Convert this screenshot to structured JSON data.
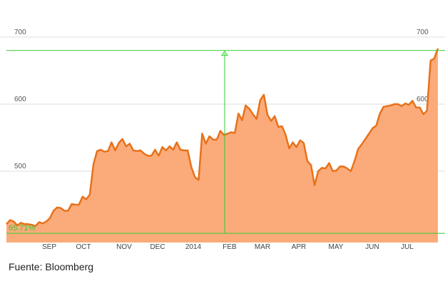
{
  "chart_data": {
    "type": "area",
    "title": "",
    "xlabel": "",
    "ylabel": "",
    "ylim": [
      415,
      730
    ],
    "grid": true,
    "y_ticks": [
      500,
      600,
      700
    ],
    "x_tick_labels": [
      "SEP",
      "OCT",
      "NOV",
      "DEC",
      "2014",
      "FEB",
      "MAR",
      "APR",
      "MAY",
      "JUN",
      "JUL"
    ],
    "annotation": "65.71%",
    "reference_levels": {
      "low": 418,
      "high": 680
    },
    "colors": {
      "line": "#e8711a",
      "fill": "#fbab7a",
      "annotation": "#33cc33",
      "grid": "#dddddd"
    },
    "series": [
      {
        "values": [
          421,
          427,
          425,
          419,
          423,
          421,
          421,
          420,
          418,
          424,
          422,
          425,
          430,
          441,
          446,
          445,
          441,
          441,
          451,
          450,
          450,
          462,
          458,
          465,
          510,
          530,
          532,
          529,
          530,
          543,
          531,
          542,
          548,
          537,
          541,
          531,
          530,
          531,
          526,
          523,
          523,
          532,
          523,
          536,
          531,
          537,
          532,
          543,
          532,
          531,
          531,
          506,
          491,
          487,
          556,
          541,
          552,
          547,
          547,
          560,
          554,
          556,
          558,
          557,
          586,
          576,
          598,
          593,
          585,
          578,
          606,
          614,
          584,
          575,
          582,
          566,
          567,
          554,
          534,
          543,
          536,
          546,
          542,
          515,
          509,
          479,
          500,
          505,
          504,
          512,
          500,
          501,
          507,
          507,
          504,
          500,
          515,
          533,
          540,
          548,
          556,
          564,
          568,
          586,
          596,
          597,
          598,
          600,
          600,
          597,
          601,
          599,
          605,
          595,
          595,
          585,
          590,
          665,
          668,
          683
        ]
      }
    ]
  },
  "source_text": "Fuente: Bloomberg"
}
